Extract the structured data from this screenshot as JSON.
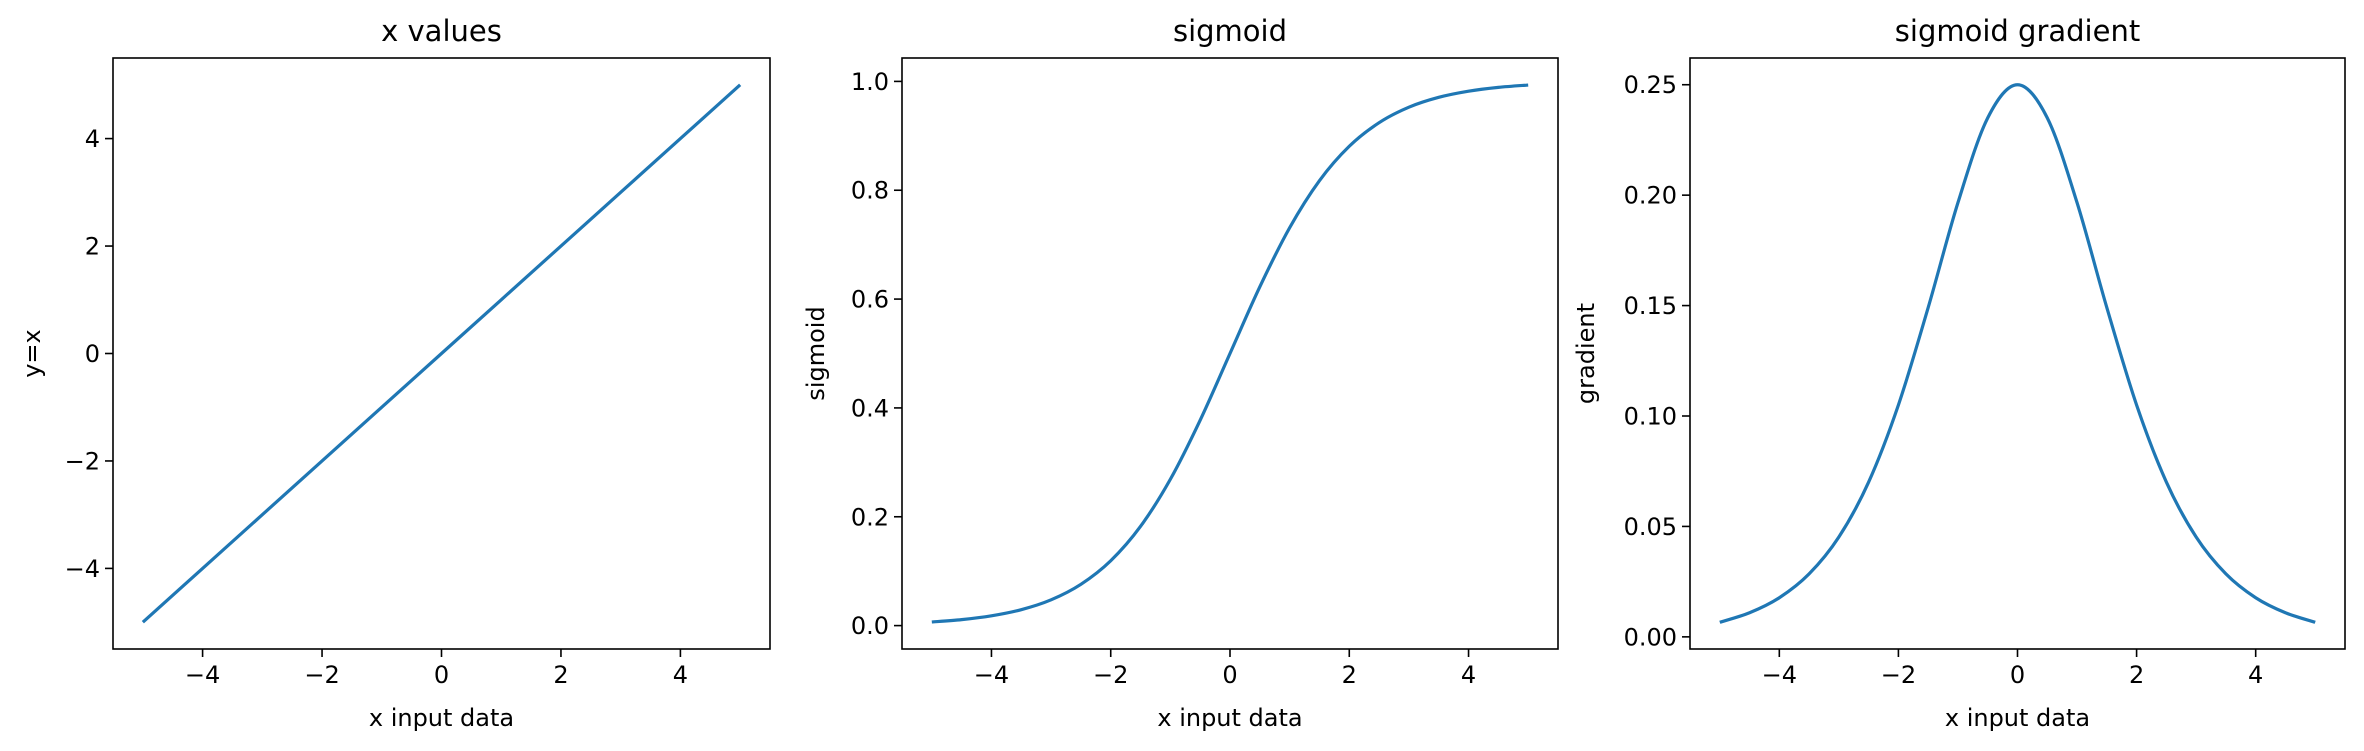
{
  "figure": {
    "background": "#ffffff"
  },
  "chart_data": [
    {
      "type": "line",
      "title": "x values",
      "xlabel": "x input data",
      "ylabel": "y=x",
      "xlim": [
        -5.5,
        5.5
      ],
      "ylim": [
        -5.5,
        5.5
      ],
      "xticks": [
        -4,
        -2,
        0,
        2,
        4
      ],
      "xtick_labels": [
        "−4",
        "−2",
        "0",
        "2",
        "4"
      ],
      "yticks": [
        -4,
        -2,
        0,
        2,
        4
      ],
      "ytick_labels": [
        "−4",
        "−2",
        "0",
        "2",
        "4"
      ],
      "grid": false,
      "series": [
        {
          "color": "#1f77b4",
          "x": [
            -5,
            -4,
            -3,
            -2,
            -1,
            0,
            1,
            2,
            3,
            4,
            5
          ],
          "y": [
            -5,
            -4,
            -3,
            -2,
            -1,
            0,
            1,
            2,
            3,
            4,
            5
          ]
        }
      ]
    },
    {
      "type": "line",
      "title": "sigmoid",
      "xlabel": "x input data",
      "ylabel": "sigmoid",
      "xlim": [
        -5.5,
        5.5
      ],
      "ylim": [
        -0.043,
        1.043
      ],
      "xticks": [
        -4,
        -2,
        0,
        2,
        4
      ],
      "xtick_labels": [
        "−4",
        "−2",
        "0",
        "2",
        "4"
      ],
      "yticks": [
        0.0,
        0.2,
        0.4,
        0.6,
        0.8,
        1.0
      ],
      "ytick_labels": [
        "0.0",
        "0.2",
        "0.4",
        "0.6",
        "0.8",
        "1.0"
      ],
      "grid": false,
      "series": [
        {
          "color": "#1f77b4",
          "x": [
            -5,
            -4.5,
            -4,
            -3.5,
            -3,
            -2.5,
            -2,
            -1.5,
            -1,
            -0.5,
            0,
            0.5,
            1,
            1.5,
            2,
            2.5,
            3,
            3.5,
            4,
            4.5,
            5
          ],
          "y": [
            0.0067,
            0.011,
            0.018,
            0.0293,
            0.0474,
            0.0759,
            0.1192,
            0.1824,
            0.2689,
            0.3775,
            0.5,
            0.6225,
            0.7311,
            0.8176,
            0.8808,
            0.9241,
            0.9526,
            0.9707,
            0.982,
            0.989,
            0.9933
          ]
        }
      ]
    },
    {
      "type": "line",
      "title": "sigmoid gradient",
      "xlabel": "x input data",
      "ylabel": "gradient",
      "xlim": [
        -5.5,
        5.5
      ],
      "ylim": [
        -0.0055,
        0.2621
      ],
      "xticks": [
        -4,
        -2,
        0,
        2,
        4
      ],
      "xtick_labels": [
        "−4",
        "−2",
        "0",
        "2",
        "4"
      ],
      "yticks": [
        0.0,
        0.05,
        0.1,
        0.15,
        0.2,
        0.25
      ],
      "ytick_labels": [
        "0.00",
        "0.05",
        "0.10",
        "0.15",
        "0.20",
        "0.25"
      ],
      "grid": false,
      "series": [
        {
          "color": "#1f77b4",
          "x": [
            -5,
            -4.5,
            -4,
            -3.5,
            -3,
            -2.5,
            -2,
            -1.5,
            -1,
            -0.5,
            0,
            0.5,
            1,
            1.5,
            2,
            2.5,
            3,
            3.5,
            4,
            4.5,
            5
          ],
          "y": [
            0.0066,
            0.0109,
            0.0177,
            0.0285,
            0.0452,
            0.0701,
            0.105,
            0.1491,
            0.1966,
            0.235,
            0.25,
            0.235,
            0.1966,
            0.1491,
            0.105,
            0.0701,
            0.0452,
            0.0285,
            0.0177,
            0.0109,
            0.0066
          ]
        }
      ]
    }
  ]
}
